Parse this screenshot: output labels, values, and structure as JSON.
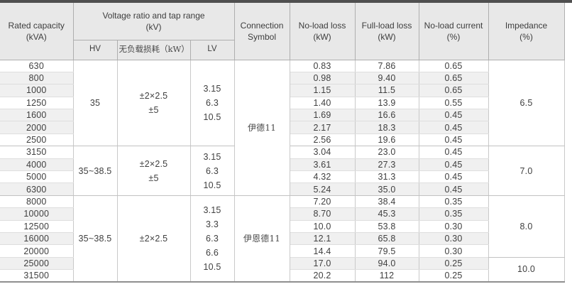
{
  "table": {
    "headers": {
      "rated_capacity": {
        "line1": "Rated capacity",
        "line2": "(kVA)"
      },
      "voltage_ratio": {
        "line1": "Voltage ratio and tap range",
        "line2": "(kV)"
      },
      "hv": "HV",
      "no_load_loss_cn": "无负载损耗（kW）",
      "lv": "LV",
      "connection": {
        "line1": "Connection",
        "line2": "Symbol"
      },
      "no_load_loss": {
        "line1": "No-load loss",
        "line2": "(kW)"
      },
      "full_load_loss": {
        "line1": "Full-load loss",
        "line2": "(kW)"
      },
      "no_load_current": {
        "line1": "No-load current",
        "line2": "(%)"
      },
      "impedance": {
        "line1": "Impedance",
        "line2": "(%)"
      }
    },
    "columns": [
      "rated_capacity",
      "hv",
      "tap_range",
      "lv",
      "connection_symbol",
      "no_load_loss",
      "full_load_loss",
      "no_load_current",
      "impedance"
    ],
    "rows": [
      {
        "rated_capacity": "630",
        "no_load_loss": "0.83",
        "full_load_loss": "7.86",
        "no_load_current": "0.65",
        "striped": false,
        "group_end": false
      },
      {
        "rated_capacity": "800",
        "no_load_loss": "0.98",
        "full_load_loss": "9.40",
        "no_load_current": "0.65",
        "striped": true,
        "group_end": false
      },
      {
        "rated_capacity": "1000",
        "no_load_loss": "1.15",
        "full_load_loss": "11.5",
        "no_load_current": "0.65",
        "striped": true,
        "group_end": false
      },
      {
        "rated_capacity": "1250",
        "no_load_loss": "1.40",
        "full_load_loss": "13.9",
        "no_load_current": "0.55",
        "striped": false,
        "group_end": false
      },
      {
        "rated_capacity": "1600",
        "no_load_loss": "1.69",
        "full_load_loss": "16.6",
        "no_load_current": "0.45",
        "striped": true,
        "group_end": false
      },
      {
        "rated_capacity": "2000",
        "no_load_loss": "2.17",
        "full_load_loss": "18.3",
        "no_load_current": "0.45",
        "striped": true,
        "group_end": false
      },
      {
        "rated_capacity": "2500",
        "no_load_loss": "2.56",
        "full_load_loss": "19.6",
        "no_load_current": "0.45",
        "striped": false,
        "group_end": true
      },
      {
        "rated_capacity": "3150",
        "no_load_loss": "3.04",
        "full_load_loss": "23.0",
        "no_load_current": "0.45",
        "striped": false,
        "group_end": false
      },
      {
        "rated_capacity": "4000",
        "no_load_loss": "3.61",
        "full_load_loss": "27.3",
        "no_load_current": "0.45",
        "striped": true,
        "group_end": false
      },
      {
        "rated_capacity": "5000",
        "no_load_loss": "4.32",
        "full_load_loss": "31.3",
        "no_load_current": "0.45",
        "striped": false,
        "group_end": false
      },
      {
        "rated_capacity": "6300",
        "no_load_loss": "5.24",
        "full_load_loss": "35.0",
        "no_load_current": "0.45",
        "striped": true,
        "group_end": true
      },
      {
        "rated_capacity": "8000",
        "no_load_loss": "7.20",
        "full_load_loss": "38.4",
        "no_load_current": "0.35",
        "striped": false,
        "group_end": false
      },
      {
        "rated_capacity": "10000",
        "no_load_loss": "8.70",
        "full_load_loss": "45.3",
        "no_load_current": "0.35",
        "striped": true,
        "group_end": false
      },
      {
        "rated_capacity": "12500",
        "no_load_loss": "10.0",
        "full_load_loss": "53.8",
        "no_load_current": "0.30",
        "striped": false,
        "group_end": false
      },
      {
        "rated_capacity": "16000",
        "no_load_loss": "12.1",
        "full_load_loss": "65.8",
        "no_load_current": "0.30",
        "striped": true,
        "group_end": false
      },
      {
        "rated_capacity": "20000",
        "no_load_loss": "14.4",
        "full_load_loss": "79.5",
        "no_load_current": "0.30",
        "striped": false,
        "group_end": false
      },
      {
        "rated_capacity": "25000",
        "no_load_loss": "17.0",
        "full_load_loss": "94.0",
        "no_load_current": "0.25",
        "striped": true,
        "group_end": false
      },
      {
        "rated_capacity": "31500",
        "no_load_loss": "20.2",
        "full_load_loss": "112",
        "no_load_current": "0.25",
        "striped": false,
        "group_end": false
      }
    ],
    "merges": [
      {
        "col": "hv",
        "start": 0,
        "span": 7,
        "lines": [
          "35"
        ]
      },
      {
        "col": "tap_range",
        "start": 0,
        "span": 7,
        "lines": [
          "±2×2.5",
          "±5"
        ]
      },
      {
        "col": "lv",
        "start": 0,
        "span": 7,
        "lines": [
          "3.15",
          "6.3",
          "10.5"
        ]
      },
      {
        "col": "connection_symbol",
        "start": 0,
        "span": 11,
        "lines": [
          "伊德11"
        ]
      },
      {
        "col": "impedance",
        "start": 0,
        "span": 7,
        "lines": [
          "6.5"
        ]
      },
      {
        "col": "hv",
        "start": 7,
        "span": 4,
        "lines": [
          "35~38.5"
        ]
      },
      {
        "col": "tap_range",
        "start": 7,
        "span": 4,
        "lines": [
          "±2×2.5",
          "±5"
        ]
      },
      {
        "col": "lv",
        "start": 7,
        "span": 4,
        "lines": [
          "3.15",
          "6.3",
          "10.5"
        ]
      },
      {
        "col": "impedance",
        "start": 7,
        "span": 4,
        "lines": [
          "7.0"
        ]
      },
      {
        "col": "hv",
        "start": 11,
        "span": 7,
        "lines": [
          "35~38.5"
        ]
      },
      {
        "col": "tap_range",
        "start": 11,
        "span": 7,
        "lines": [
          "±2×2.5"
        ]
      },
      {
        "col": "lv",
        "start": 11,
        "span": 7,
        "lines": [
          "3.15",
          "3.3",
          "6.3",
          "6.6",
          "10.5"
        ]
      },
      {
        "col": "connection_symbol",
        "start": 11,
        "span": 7,
        "lines": [
          "伊恩德11"
        ]
      },
      {
        "col": "impedance",
        "start": 11,
        "span": 5,
        "lines": [
          "8.0"
        ]
      },
      {
        "col": "impedance",
        "start": 16,
        "span": 2,
        "lines": [
          "10.0"
        ]
      }
    ]
  }
}
